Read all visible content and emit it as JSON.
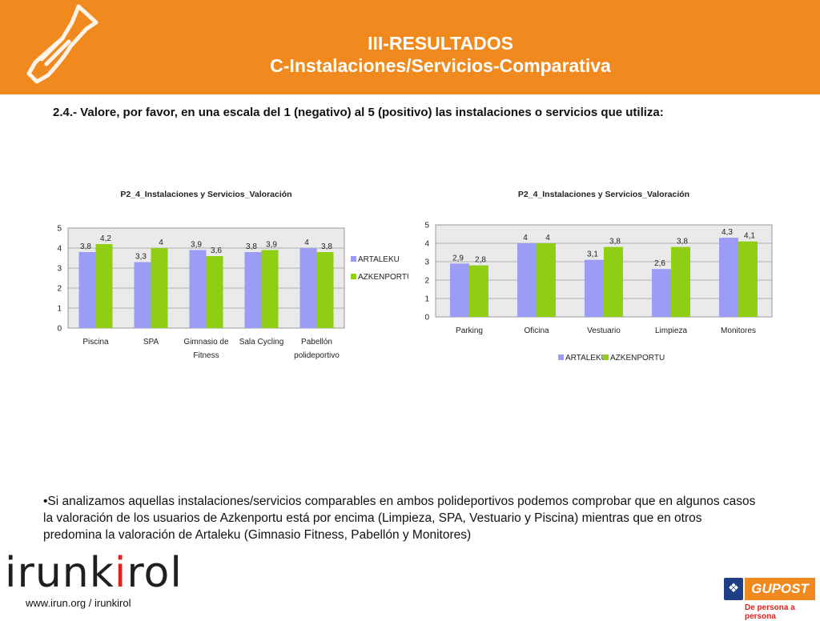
{
  "header": {
    "title_line1": "III-RESULTADOS",
    "title_line2": "C-Instalaciones/Servicios-Comparativa",
    "background_color": "#f08a1f"
  },
  "question": "2.4.- Valore, por favor, en una escala del 1 (negativo) al 5 (positivo) las instalaciones o servicios que utiliza:",
  "colors": {
    "artaleku": "#9a9cf5",
    "azkenportu": "#8fce12"
  },
  "chart_data": [
    {
      "type": "bar",
      "title": "P2_4_Instalaciones y Servicios_Valoración",
      "categories": [
        [
          "Piscina"
        ],
        [
          "SPA"
        ],
        [
          "Gimnasio de",
          "Fitness"
        ],
        [
          "Sala Cycling"
        ],
        [
          "Pabellón",
          "polideportivo"
        ]
      ],
      "series": [
        {
          "name": "ARTALEKU",
          "values": [
            3.8,
            3.3,
            3.9,
            3.8,
            4
          ],
          "labels": [
            "3,8",
            "3,3",
            "3,9",
            "3,8",
            "4"
          ]
        },
        {
          "name": "AZKENPORTU",
          "values": [
            4.2,
            4,
            3.6,
            3.9,
            3.8
          ],
          "labels": [
            "4,2",
            "4",
            "3,6",
            "3,9",
            "3,8"
          ]
        }
      ],
      "ylim": [
        0,
        5
      ],
      "yticks": [
        "0",
        "1",
        "2",
        "3",
        "4",
        "5"
      ],
      "grid": true,
      "legend": "right"
    },
    {
      "type": "bar",
      "title": "P2_4_Instalaciones y Servicios_Valoración",
      "categories": [
        [
          "Parking"
        ],
        [
          "Oficina"
        ],
        [
          "Vestuario"
        ],
        [
          "Limpieza"
        ],
        [
          "Monitores"
        ]
      ],
      "series": [
        {
          "name": "ARTALEKU",
          "values": [
            2.9,
            4,
            3.1,
            2.6,
            4.3
          ],
          "labels": [
            "2,9",
            "4",
            "3,1",
            "2,6",
            "4,3"
          ]
        },
        {
          "name": "AZKENPORTU",
          "values": [
            2.8,
            4,
            3.8,
            3.8,
            4.1
          ],
          "labels": [
            "2,8",
            "4",
            "3,8",
            "3,8",
            "4,1"
          ]
        }
      ],
      "ylim": [
        0,
        5
      ],
      "yticks": [
        "0",
        "1",
        "2",
        "3",
        "4",
        "5"
      ],
      "grid": true,
      "legend": "bottom"
    }
  ],
  "summary": "•Si analizamos aquellas instalaciones/servicios comparables en ambos polideportivos podemos comprobar que en algunos casos la valoración de los usuarios de Azkenportu está por encima (Limpieza, SPA, Vestuario y Piscina) mientras que en otros predomina la valoración de Artaleku (Gimnasio Fitness, Pabellón y Monitores)",
  "footer": {
    "brand_before": "irunk",
    "brand_highlight": "i",
    "brand_after": "rol",
    "url": "www.irun.org / irunkirol",
    "partner_name": "GUPOST",
    "partner_tagline": "De persona a persona"
  }
}
